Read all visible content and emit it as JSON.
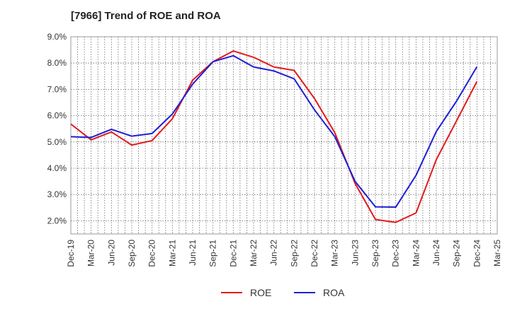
{
  "chart_data": {
    "type": "line",
    "title": "[7966]  Trend of ROE and ROA",
    "xlabel": "",
    "ylabel": "",
    "categories": [
      "Dec-19",
      "Mar-20",
      "Jun-20",
      "Sep-20",
      "Dec-20",
      "Mar-21",
      "Jun-21",
      "Sep-21",
      "Dec-21",
      "Mar-22",
      "Jun-22",
      "Sep-22",
      "Dec-22",
      "Mar-23",
      "Jun-23",
      "Sep-23",
      "Dec-23",
      "Mar-24",
      "Jun-24",
      "Sep-24",
      "Dec-24",
      "Mar-25"
    ],
    "yticks": [
      "2.0%",
      "3.0%",
      "4.0%",
      "5.0%",
      "6.0%",
      "7.0%",
      "8.0%",
      "9.0%"
    ],
    "ylim": [
      1.5,
      9.0
    ],
    "grid": true,
    "legend_position": "bottom",
    "series": [
      {
        "name": "ROE",
        "color": "#e31a1c",
        "values": [
          5.68,
          5.08,
          5.38,
          4.88,
          5.05,
          5.88,
          7.35,
          8.05,
          8.46,
          8.22,
          7.85,
          7.72,
          6.65,
          5.35,
          3.42,
          2.05,
          1.94,
          2.3,
          4.33,
          5.81,
          7.3,
          null
        ]
      },
      {
        "name": "ROA",
        "color": "#1f1fd6",
        "values": [
          5.2,
          5.17,
          5.48,
          5.22,
          5.32,
          6.06,
          7.2,
          8.05,
          8.28,
          7.85,
          7.7,
          7.4,
          6.22,
          5.2,
          3.5,
          2.53,
          2.52,
          3.73,
          5.4,
          6.56,
          7.86,
          null
        ]
      }
    ]
  }
}
